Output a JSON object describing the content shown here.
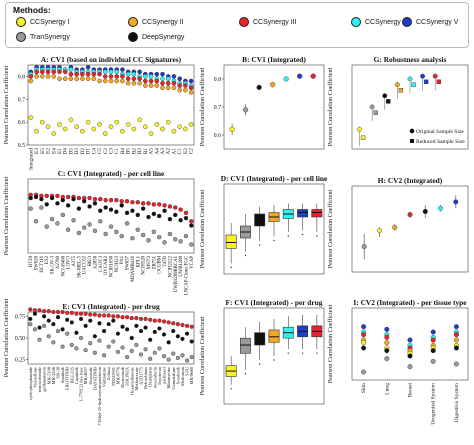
{
  "legend": {
    "title": "Methods:",
    "items": [
      {
        "label": "CCSynergy I",
        "color": "#f5f227"
      },
      {
        "label": "CCSynergy II",
        "color": "#f5a623"
      },
      {
        "label": "CCSynergy III",
        "color": "#e8212a"
      },
      {
        "label": "CCSynergy IV",
        "color": "#2ef2f2"
      },
      {
        "label": "CCSynergy V",
        "color": "#1f3cc8"
      },
      {
        "label": "TranSynergy",
        "color": "#9a9a9a"
      },
      {
        "label": "DeepSynergy",
        "color": "#111111"
      }
    ]
  },
  "y_axis_label": "Pearson Correlation Coefficient",
  "chart_data": [
    {
      "panel": "A",
      "title": "A: CV1 (based on individual CC Signatures)",
      "type": "scatter",
      "ylim": [
        0.5,
        0.85
      ],
      "ytick_values": [
        0.5,
        0.6,
        0.7,
        0.8
      ],
      "ytick_labels": [
        "0.5",
        "0.6",
        "0.7",
        "0.8"
      ],
      "categories": [
        "Integrated",
        "E3",
        "E5",
        "E2",
        "E4",
        "E1",
        "D4",
        "D5",
        "D3",
        "D2",
        "D1",
        "C4",
        "C5",
        "C2",
        "C3",
        "C1",
        "B4",
        "B5",
        "B2",
        "B3",
        "B1",
        "A5",
        "A4",
        "A3",
        "A2",
        "A1",
        "C1",
        "E2",
        "C2"
      ],
      "series": [
        {
          "name": "CCSynergy V",
          "values": [
            0.82,
            0.84,
            0.84,
            0.84,
            0.84,
            0.84,
            0.83,
            0.84,
            0.83,
            0.83,
            0.84,
            0.83,
            0.83,
            0.83,
            0.83,
            0.83,
            0.83,
            0.82,
            0.82,
            0.82,
            0.81,
            0.81,
            0.81,
            0.81,
            0.8,
            0.8,
            0.79,
            0.78,
            0.78
          ]
        },
        {
          "name": "CCSynergy IV",
          "values": [
            0.81,
            0.83,
            0.83,
            0.83,
            0.83,
            0.83,
            0.83,
            0.83,
            0.82,
            0.82,
            0.82,
            0.82,
            0.82,
            0.82,
            0.82,
            0.82,
            0.81,
            0.81,
            0.81,
            0.8,
            0.8,
            0.8,
            0.79,
            0.79,
            0.79,
            0.78,
            0.77,
            0.77,
            0.76
          ]
        },
        {
          "name": "CCSynergy III",
          "values": [
            0.8,
            0.82,
            0.82,
            0.82,
            0.82,
            0.82,
            0.82,
            0.81,
            0.81,
            0.81,
            0.81,
            0.81,
            0.81,
            0.8,
            0.8,
            0.8,
            0.8,
            0.79,
            0.79,
            0.79,
            0.78,
            0.78,
            0.78,
            0.77,
            0.77,
            0.77,
            0.76,
            0.76,
            0.75
          ]
        },
        {
          "name": "CCSynergy II",
          "values": [
            0.78,
            0.8,
            0.8,
            0.8,
            0.8,
            0.79,
            0.79,
            0.79,
            0.79,
            0.79,
            0.79,
            0.79,
            0.78,
            0.78,
            0.78,
            0.78,
            0.78,
            0.77,
            0.77,
            0.77,
            0.76,
            0.76,
            0.76,
            0.75,
            0.75,
            0.75,
            0.74,
            0.74,
            0.73
          ]
        },
        {
          "name": "CCSynergy I",
          "values": [
            0.62,
            0.56,
            0.6,
            0.58,
            0.55,
            0.59,
            0.57,
            0.61,
            0.58,
            0.56,
            0.6,
            0.57,
            0.59,
            0.55,
            0.58,
            0.6,
            0.56,
            0.59,
            0.57,
            0.61,
            0.58,
            0.55,
            0.59,
            0.57,
            0.6,
            0.56,
            0.58,
            0.57,
            0.59
          ]
        }
      ]
    },
    {
      "panel": "B",
      "title": "B: CV1 (Integrated)",
      "type": "scatter",
      "ylim": [
        0.55,
        0.85
      ],
      "ytick_values": [
        0.6,
        0.7,
        0.8
      ],
      "ytick_labels": [
        "0.6",
        "0.7",
        "0.8"
      ],
      "series": [
        {
          "name": "CCSynergy I",
          "value": 0.62,
          "low": 0.6,
          "high": 0.64
        },
        {
          "name": "TranSynergy",
          "value": 0.69,
          "low": 0.67,
          "high": 0.71
        },
        {
          "name": "DeepSynergy",
          "value": 0.77,
          "low": 0.765,
          "high": 0.775
        },
        {
          "name": "CCSynergy II",
          "value": 0.78,
          "low": 0.77,
          "high": 0.79
        },
        {
          "name": "CCSynergy IV",
          "value": 0.8,
          "low": 0.795,
          "high": 0.805
        },
        {
          "name": "CCSynergy V",
          "value": 0.81,
          "low": 0.805,
          "high": 0.815
        },
        {
          "name": "CCSynergy III",
          "value": 0.81,
          "low": 0.805,
          "high": 0.815
        }
      ]
    },
    {
      "panel": "G",
      "title": "G: Robustness analysis",
      "type": "scatter",
      "ylim": [
        0.55,
        0.85
      ],
      "ytick_values": [
        0.6,
        0.7,
        0.8
      ],
      "ytick_labels": [
        "0.6",
        "0.7",
        "0.8"
      ],
      "annotations": [
        "Original Sample Size",
        "Reduced Sample Size"
      ],
      "series": [
        {
          "name": "CCSynergy I",
          "original": 0.62,
          "reduced": 0.59
        },
        {
          "name": "TranSynergy",
          "original": 0.7,
          "reduced": 0.68
        },
        {
          "name": "DeepSynergy",
          "original": 0.74,
          "reduced": 0.72
        },
        {
          "name": "CCSynergy II",
          "original": 0.78,
          "reduced": 0.76
        },
        {
          "name": "CCSynergy IV",
          "original": 0.8,
          "reduced": 0.78
        },
        {
          "name": "CCSynergy V",
          "original": 0.81,
          "reduced": 0.79
        },
        {
          "name": "CCSynergy III",
          "original": 0.81,
          "reduced": 0.79
        }
      ]
    },
    {
      "panel": "C",
      "title": "C: CV1 (Integrated) - per cell line",
      "type": "scatter",
      "ylim": [
        0.3,
        1.0
      ],
      "categories": [
        "HT29",
        "SW620",
        "HCT116",
        "ES2",
        "SK-OV-3",
        "A2780",
        "NCI-H460",
        "LOVO",
        "A375",
        "SK-MEL-5",
        "UACC62",
        "RKO",
        "A2058",
        "CAOV3",
        "OVCAR3",
        "NCIH1650",
        "NCIH23",
        "PA1",
        "SW837",
        "MDAMB436",
        "KPL1",
        "NCIH520",
        "MSTO",
        "ZR751",
        "OCUBM",
        "T47D",
        "NCIH2122",
        "UWB1289BRCA1",
        "UWB1289",
        "LNCAP-Clone FGC",
        "VCAP"
      ],
      "series": [
        {
          "name": "CCSynergy III",
          "values": [
            0.85,
            0.85,
            0.84,
            0.84,
            0.84,
            0.84,
            0.83,
            0.83,
            0.83,
            0.82,
            0.82,
            0.82,
            0.81,
            0.81,
            0.8,
            0.8,
            0.8,
            0.79,
            0.79,
            0.78,
            0.78,
            0.77,
            0.77,
            0.76,
            0.76,
            0.75,
            0.74,
            0.73,
            0.71,
            0.68,
            0.6
          ]
        },
        {
          "name": "DeepSynergy",
          "values": [
            0.82,
            0.83,
            0.81,
            0.76,
            0.82,
            0.77,
            0.8,
            0.75,
            0.81,
            0.72,
            0.79,
            0.74,
            0.77,
            0.7,
            0.73,
            0.71,
            0.69,
            0.75,
            0.68,
            0.7,
            0.66,
            0.72,
            0.64,
            0.67,
            0.65,
            0.7,
            0.62,
            0.66,
            0.61,
            0.63,
            0.56
          ]
        },
        {
          "name": "TranSynergy",
          "values": [
            0.72,
            0.6,
            0.73,
            0.55,
            0.62,
            0.58,
            0.66,
            0.52,
            0.61,
            0.49,
            0.54,
            0.57,
            0.51,
            0.6,
            0.48,
            0.55,
            0.5,
            0.46,
            0.58,
            0.44,
            0.52,
            0.47,
            0.42,
            0.5,
            0.45,
            0.4,
            0.48,
            0.43,
            0.41,
            0.46,
            0.38
          ]
        }
      ]
    },
    {
      "panel": "D",
      "title": "D: CV1 (Integrated) - per cell line",
      "type": "box",
      "ylim": [
        0.4,
        1.0
      ],
      "series": [
        {
          "name": "CCSynergy I",
          "min": 0.47,
          "q1": 0.57,
          "median": 0.61,
          "q3": 0.66,
          "max": 0.74
        },
        {
          "name": "TranSynergy",
          "min": 0.55,
          "q1": 0.64,
          "median": 0.68,
          "q3": 0.72,
          "max": 0.8
        },
        {
          "name": "DeepSynergy",
          "min": 0.62,
          "q1": 0.72,
          "median": 0.76,
          "q3": 0.8,
          "max": 0.85
        },
        {
          "name": "CCSynergy II",
          "min": 0.65,
          "q1": 0.75,
          "median": 0.78,
          "q3": 0.81,
          "max": 0.86
        },
        {
          "name": "CCSynergy IV",
          "min": 0.68,
          "q1": 0.77,
          "median": 0.8,
          "q3": 0.83,
          "max": 0.87
        },
        {
          "name": "CCSynergy V",
          "min": 0.69,
          "q1": 0.78,
          "median": 0.81,
          "q3": 0.83,
          "max": 0.87
        },
        {
          "name": "CCSynergy III",
          "min": 0.68,
          "q1": 0.78,
          "median": 0.81,
          "q3": 0.83,
          "max": 0.87
        }
      ]
    },
    {
      "panel": "H",
      "title": "H: CV2 (Integrated)",
      "type": "scatter",
      "ylim": [
        0.35,
        0.62
      ],
      "series": [
        {
          "name": "TranSynergy",
          "value": 0.43,
          "low": 0.39,
          "high": 0.47
        },
        {
          "name": "CCSynergy I",
          "value": 0.48,
          "low": 0.46,
          "high": 0.49
        },
        {
          "name": "CCSynergy II",
          "value": 0.49,
          "low": 0.48,
          "high": 0.5
        },
        {
          "name": "CCSynergy III",
          "value": 0.53,
          "low": 0.52,
          "high": 0.54
        },
        {
          "name": "DeepSynergy",
          "value": 0.54,
          "low": 0.52,
          "high": 0.56
        },
        {
          "name": "CCSynergy IV",
          "value": 0.55,
          "low": 0.54,
          "high": 0.56
        },
        {
          "name": "CCSynergy V",
          "value": 0.57,
          "low": 0.55,
          "high": 0.59
        }
      ]
    },
    {
      "panel": "E",
      "title": "E: CV1 (Integrated) - per drug",
      "type": "scatter",
      "ylim": [
        0.2,
        0.8
      ],
      "ytick_values": [
        0.25,
        0.5,
        0.75
      ],
      "ytick_labels": [
        "0.25",
        "0.50",
        "0.75"
      ],
      "categories": [
        "cyclophosphamide",
        "Vinorelbine",
        "temozolomide",
        "geldanamycin",
        "MK-5108",
        "MK-2206",
        "SN-38",
        "Sunitinib",
        "ERLOTINIB",
        "BEZ-235",
        "Lapatinib",
        "L-778123 free base",
        "MK-4827",
        "Etoposide",
        "DASATINIB",
        "7-Ethyl-10-hydroxycamptothecin",
        "Vinblastine",
        "Zolinza",
        "PD325901",
        "MK-8776",
        "Bortezomib",
        "ZOLINZA",
        "Dexamethasone",
        "Methotrexate",
        "AZD1775",
        "Deforolimus",
        "Oxaliplatin",
        "doxorubicin",
        "Topotecan",
        "paclitaxel",
        "Mitomycine",
        "Gemcitabine",
        "Sorafenib",
        "Metformin",
        "5-FU",
        "MK-8669"
      ],
      "series": [
        {
          "name": "CCSynergy III",
          "values": [
            0.83,
            0.82,
            0.82,
            0.81,
            0.81,
            0.8,
            0.8,
            0.8,
            0.79,
            0.79,
            0.78,
            0.78,
            0.78,
            0.77,
            0.77,
            0.76,
            0.76,
            0.76,
            0.75,
            0.75,
            0.74,
            0.74,
            0.73,
            0.73,
            0.72,
            0.72,
            0.71,
            0.7,
            0.7,
            0.69,
            0.68,
            0.67,
            0.66,
            0.65,
            0.64,
            0.63
          ]
        },
        {
          "name": "DeepSynergy",
          "values": [
            0.72,
            0.78,
            0.62,
            0.75,
            0.7,
            0.66,
            0.74,
            0.6,
            0.71,
            0.68,
            0.56,
            0.72,
            0.64,
            0.7,
            0.52,
            0.67,
            0.58,
            0.66,
            0.7,
            0.55,
            0.63,
            0.6,
            0.5,
            0.64,
            0.58,
            0.62,
            0.48,
            0.57,
            0.61,
            0.54,
            0.45,
            0.58,
            0.52,
            0.49,
            0.55,
            0.46
          ]
        },
        {
          "name": "TranSynergy",
          "values": [
            0.66,
            0.6,
            0.48,
            0.64,
            0.52,
            0.45,
            0.58,
            0.4,
            0.55,
            0.42,
            0.38,
            0.5,
            0.36,
            0.44,
            0.33,
            0.47,
            0.3,
            0.4,
            0.46,
            0.34,
            0.39,
            0.28,
            0.35,
            0.42,
            0.31,
            0.37,
            0.26,
            0.33,
            0.38,
            0.29,
            0.25,
            0.32,
            0.27,
            0.3,
            0.24,
            0.28
          ]
        }
      ]
    },
    {
      "panel": "F",
      "title": "F: CV1 (Integrated) - per drug",
      "type": "box",
      "ylim": [
        0.2,
        0.9
      ],
      "series": [
        {
          "name": "CCSynergy I",
          "min": 0.34,
          "q1": 0.4,
          "median": 0.44,
          "q3": 0.48,
          "max": 0.55
        },
        {
          "name": "TranSynergy",
          "min": 0.45,
          "q1": 0.57,
          "median": 0.63,
          "q3": 0.68,
          "max": 0.76
        },
        {
          "name": "DeepSynergy",
          "min": 0.52,
          "q1": 0.63,
          "median": 0.68,
          "q3": 0.72,
          "max": 0.8
        },
        {
          "name": "CCSynergy II",
          "min": 0.55,
          "q1": 0.65,
          "median": 0.69,
          "q3": 0.74,
          "max": 0.82
        },
        {
          "name": "CCSynergy IV",
          "min": 0.6,
          "q1": 0.68,
          "median": 0.72,
          "q3": 0.76,
          "max": 0.84
        },
        {
          "name": "CCSynergy V",
          "min": 0.6,
          "q1": 0.69,
          "median": 0.73,
          "q3": 0.77,
          "max": 0.85
        },
        {
          "name": "CCSynergy III",
          "min": 0.6,
          "q1": 0.69,
          "median": 0.73,
          "q3": 0.77,
          "max": 0.85
        }
      ]
    },
    {
      "panel": "I",
      "title": "I: CV2 (Integrated) - per tissue type",
      "type": "scatter",
      "ylim": [
        0.35,
        0.62
      ],
      "categories": [
        "Skin",
        "Lung",
        "Breast",
        "Urogenital System",
        "Digestive System"
      ],
      "series": [
        {
          "name": "CCSynergy V",
          "values": [
            0.55,
            0.54,
            0.5,
            0.53,
            0.55
          ]
        },
        {
          "name": "CCSynergy IV",
          "values": [
            0.53,
            0.52,
            0.48,
            0.51,
            0.53
          ]
        },
        {
          "name": "CCSynergy III",
          "values": [
            0.52,
            0.51,
            0.47,
            0.5,
            0.52
          ]
        },
        {
          "name": "CCSynergy II",
          "values": [
            0.5,
            0.49,
            0.46,
            0.48,
            0.5
          ]
        },
        {
          "name": "CCSynergy I",
          "values": [
            0.49,
            0.47,
            0.45,
            0.47,
            0.48
          ]
        },
        {
          "name": "DeepSynergy",
          "values": [
            0.47,
            0.46,
            0.44,
            0.46,
            0.47
          ]
        },
        {
          "name": "TranSynergy",
          "values": [
            0.38,
            0.43,
            0.4,
            0.42,
            0.41
          ]
        }
      ]
    }
  ]
}
